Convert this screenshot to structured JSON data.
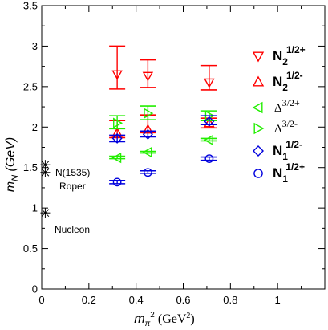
{
  "chart_data": {
    "type": "scatter",
    "title": "",
    "xlabel": "m_π² (GeV²)",
    "ylabel": "m_N (GeV)",
    "xlim": [
      0,
      1.2
    ],
    "ylim": [
      0,
      3.5
    ],
    "xticks": [
      "0",
      "0.2",
      "0.4",
      "0.6",
      "0.8",
      "1"
    ],
    "yticks": [
      "0",
      "0.5",
      "1",
      "1.5",
      "2",
      "2.5",
      "3",
      "3.5"
    ],
    "grid": false,
    "legend_position": "right",
    "series": [
      {
        "name": "N2 1/2+",
        "legend_main": "N",
        "legend_sub": "2",
        "legend_sup": "1/2+",
        "marker": "triangle-down",
        "color": "#ff0000",
        "x": [
          0.32,
          0.45,
          0.71
        ],
        "y": [
          2.65,
          2.63,
          2.55
        ],
        "yerr_low": [
          2.47,
          2.49,
          2.46
        ],
        "yerr_high": [
          3.0,
          2.83,
          2.76
        ]
      },
      {
        "name": "N2 1/2-",
        "legend_main": "N",
        "legend_sub": "2",
        "legend_sup": "1/2-",
        "marker": "triangle-up",
        "color": "#ff0000",
        "x": [
          0.32,
          0.45,
          0.71
        ],
        "y": [
          1.93,
          1.97,
          2.05
        ],
        "yerr_low": [
          1.87,
          1.93,
          1.99
        ],
        "yerr_high": [
          2.08,
          2.15,
          2.11
        ]
      },
      {
        "name": "Δ 3/2+",
        "legend_main": "Δ",
        "legend_sub": "",
        "legend_sup": "3/2+",
        "marker": "triangle-left",
        "color": "#22ee00",
        "x": [
          0.32,
          0.45,
          0.71
        ],
        "y": [
          1.62,
          1.69,
          1.84
        ],
        "yerr_low": [
          1.61,
          1.68,
          1.83
        ],
        "yerr_high": [
          1.64,
          1.7,
          1.86
        ]
      },
      {
        "name": "Δ 3/2-",
        "legend_main": "Δ",
        "legend_sub": "",
        "legend_sup": "3/2-",
        "marker": "triangle-right",
        "color": "#22ee00",
        "x": [
          0.32,
          0.45,
          0.71
        ],
        "y": [
          2.05,
          2.17,
          2.14
        ],
        "yerr_low": [
          1.98,
          2.09,
          2.08
        ],
        "yerr_high": [
          2.14,
          2.26,
          2.2
        ]
      },
      {
        "name": "N1 1/2-",
        "legend_main": "N",
        "legend_sub": "1",
        "legend_sup": "1/2-",
        "marker": "diamond",
        "color": "#0000dd",
        "x": [
          0.32,
          0.45,
          0.71
        ],
        "y": [
          1.86,
          1.91,
          2.07
        ],
        "yerr_low": [
          1.82,
          1.88,
          2.03
        ],
        "yerr_high": [
          1.9,
          1.95,
          2.14
        ]
      },
      {
        "name": "N1 1/2+",
        "legend_main": "N",
        "legend_sub": "1",
        "legend_sup": "1/2+",
        "marker": "circle",
        "color": "#0000dd",
        "x": [
          0.32,
          0.45,
          0.71
        ],
        "y": [
          1.32,
          1.44,
          1.61
        ],
        "yerr_low": [
          1.3,
          1.43,
          1.59
        ],
        "yerr_high": [
          1.34,
          1.46,
          1.63
        ]
      }
    ],
    "experimental": [
      {
        "label": "N(1535)",
        "x": 0.015,
        "y": 1.535
      },
      {
        "label": "Roper",
        "x": 0.015,
        "y": 1.44
      },
      {
        "label": "Nucleon",
        "x": 0.015,
        "y": 0.94
      }
    ]
  }
}
